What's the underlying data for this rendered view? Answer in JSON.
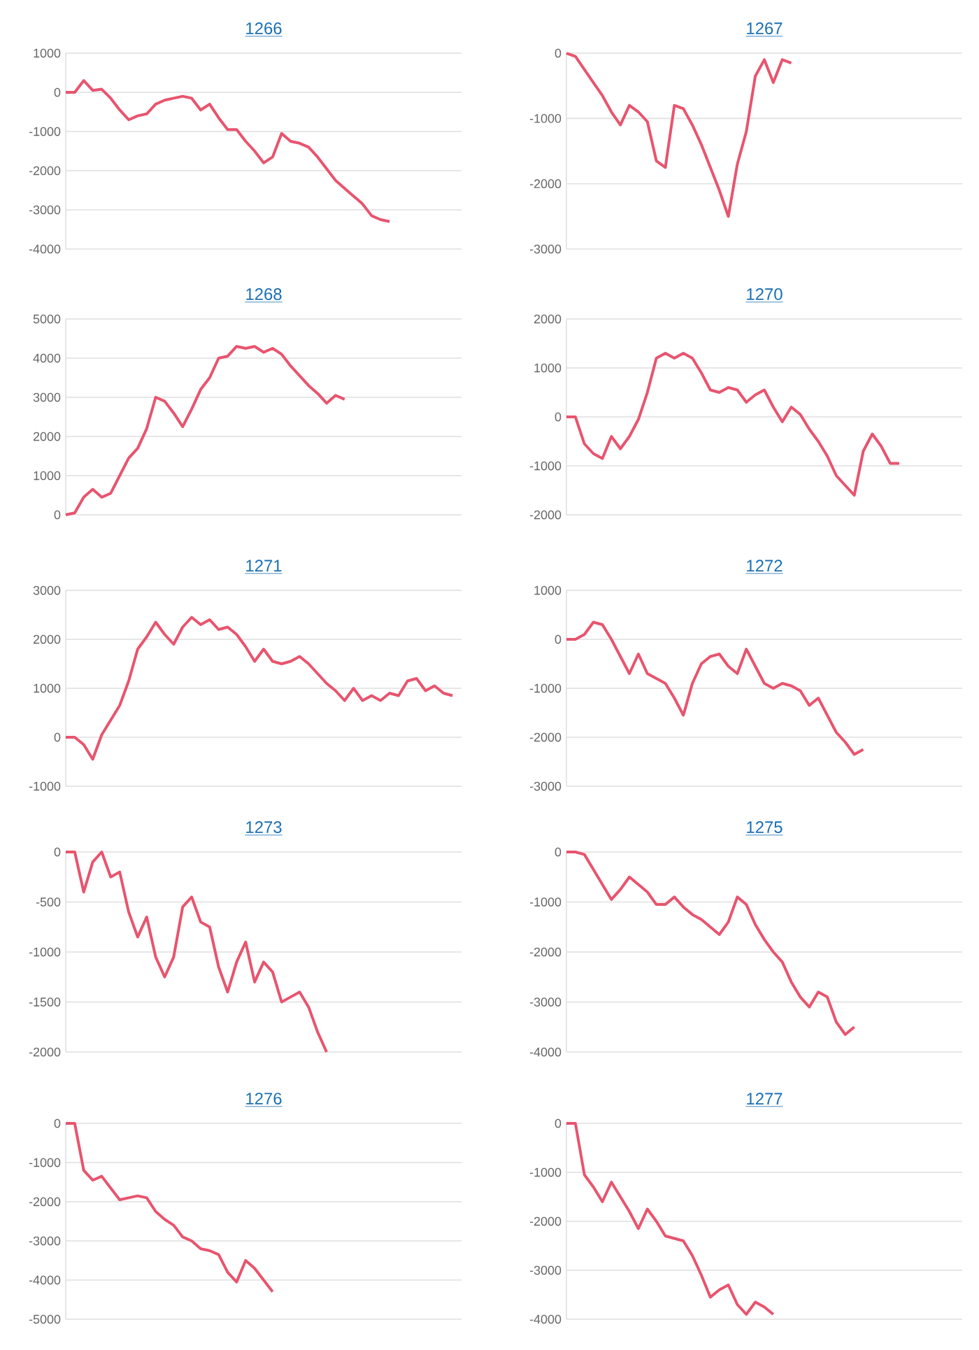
{
  "chart_data": [
    {
      "type": "line",
      "title": "1266",
      "grid": "y",
      "tick_labels": "y",
      "color": "#e8546e",
      "ylim": [
        -4000,
        1000
      ],
      "yticks": [
        -4000,
        -3000,
        -2000,
        -1000,
        0,
        1000
      ],
      "categories": [
        null,
        null,
        null,
        null,
        null,
        null,
        null,
        null,
        null,
        null,
        null,
        null,
        null,
        null,
        null,
        null,
        null,
        null,
        null,
        null,
        null,
        null,
        null,
        null,
        null,
        null,
        null,
        null,
        null,
        null,
        null,
        null,
        null,
        null,
        null,
        null,
        null,
        null,
        null,
        null,
        null,
        null,
        null,
        null,
        null
      ],
      "values": [
        0,
        0,
        300,
        50,
        80,
        -150,
        -450,
        -700,
        -600,
        -550,
        -300,
        -200,
        -150,
        -100,
        -150,
        -450,
        -300,
        -650,
        -950,
        -950,
        -1250,
        -1500,
        -1800,
        -1650,
        -1050,
        -1250,
        -1300,
        -1400,
        -1650,
        -1950,
        -2250,
        -2450,
        -2650,
        -2850,
        -3150,
        -3250,
        -3300,
        null,
        null,
        null,
        null,
        null,
        null,
        null,
        null
      ]
    },
    {
      "type": "line",
      "title": "1267",
      "grid": "y",
      "tick_labels": "y",
      "color": "#e8546e",
      "ylim": [
        -3000,
        0
      ],
      "yticks": [
        -3000,
        -2000,
        -1000,
        0
      ],
      "categories": [
        null,
        null,
        null,
        null,
        null,
        null,
        null,
        null,
        null,
        null,
        null,
        null,
        null,
        null,
        null,
        null,
        null,
        null,
        null,
        null,
        null,
        null,
        null,
        null,
        null,
        null,
        null,
        null,
        null,
        null,
        null,
        null,
        null,
        null,
        null,
        null,
        null,
        null,
        null,
        null,
        null,
        null,
        null,
        null,
        null
      ],
      "values": [
        0,
        -50,
        -250,
        -450,
        -650,
        -900,
        -1100,
        -800,
        -900,
        -1050,
        -1650,
        -1750,
        -800,
        -850,
        -1100,
        -1400,
        -1750,
        -2100,
        -2500,
        -1700,
        -1200,
        -350,
        -100,
        -450,
        -100,
        -150,
        null,
        null,
        null,
        null,
        null,
        null,
        null,
        null,
        null,
        null,
        null,
        null,
        null,
        null,
        null,
        null,
        null,
        null,
        null
      ]
    },
    {
      "type": "line",
      "title": "1268",
      "grid": "y",
      "tick_labels": "y",
      "color": "#e8546e",
      "ylim": [
        0,
        5000
      ],
      "yticks": [
        0,
        1000,
        2000,
        3000,
        4000,
        5000
      ],
      "categories": [
        null,
        null,
        null,
        null,
        null,
        null,
        null,
        null,
        null,
        null,
        null,
        null,
        null,
        null,
        null,
        null,
        null,
        null,
        null,
        null,
        null,
        null,
        null,
        null,
        null,
        null,
        null,
        null,
        null,
        null,
        null,
        null,
        null,
        null,
        null,
        null,
        null,
        null,
        null,
        null,
        null,
        null,
        null,
        null,
        null
      ],
      "values": [
        0,
        50,
        450,
        650,
        450,
        550,
        1000,
        1450,
        1700,
        2200,
        3000,
        2900,
        2600,
        2250,
        2700,
        3200,
        3500,
        4000,
        4050,
        4300,
        4250,
        4300,
        4150,
        4250,
        4100,
        3800,
        3550,
        3300,
        3100,
        2850,
        3050,
        2950,
        null,
        null,
        null,
        null,
        null,
        null,
        null,
        null,
        null,
        null,
        null,
        null,
        null
      ]
    },
    {
      "type": "line",
      "title": "1270",
      "grid": "y",
      "tick_labels": "y",
      "color": "#e8546e",
      "ylim": [
        -2000,
        2000
      ],
      "yticks": [
        -2000,
        -1000,
        0,
        1000,
        2000
      ],
      "categories": [
        null,
        null,
        null,
        null,
        null,
        null,
        null,
        null,
        null,
        null,
        null,
        null,
        null,
        null,
        null,
        null,
        null,
        null,
        null,
        null,
        null,
        null,
        null,
        null,
        null,
        null,
        null,
        null,
        null,
        null,
        null,
        null,
        null,
        null,
        null,
        null,
        null,
        null,
        null,
        null,
        null,
        null,
        null,
        null,
        null
      ],
      "values": [
        0,
        0,
        -550,
        -750,
        -850,
        -400,
        -650,
        -400,
        -50,
        500,
        1200,
        1300,
        1200,
        1300,
        1200,
        900,
        550,
        500,
        600,
        550,
        300,
        450,
        550,
        200,
        -100,
        200,
        50,
        -250,
        -500,
        -800,
        -1200,
        -1400,
        -1600,
        -700,
        -350,
        -600,
        -950,
        -950,
        null,
        null,
        null,
        null,
        null,
        null,
        null
      ]
    },
    {
      "type": "line",
      "title": "1271",
      "grid": "y",
      "tick_labels": "y",
      "color": "#e8546e",
      "ylim": [
        -1000,
        3000
      ],
      "yticks": [
        -1000,
        0,
        1000,
        2000,
        3000
      ],
      "categories": [
        null,
        null,
        null,
        null,
        null,
        null,
        null,
        null,
        null,
        null,
        null,
        null,
        null,
        null,
        null,
        null,
        null,
        null,
        null,
        null,
        null,
        null,
        null,
        null,
        null,
        null,
        null,
        null,
        null,
        null,
        null,
        null,
        null,
        null,
        null,
        null,
        null,
        null,
        null,
        null,
        null,
        null,
        null,
        null,
        null
      ],
      "values": [
        0,
        0,
        -150,
        -450,
        50,
        350,
        650,
        1150,
        1800,
        2050,
        2350,
        2100,
        1900,
        2250,
        2450,
        2300,
        2400,
        2200,
        2250,
        2100,
        1850,
        1550,
        1800,
        1550,
        1500,
        1550,
        1650,
        1500,
        1300,
        1100,
        950,
        750,
        1000,
        750,
        850,
        750,
        900,
        850,
        1150,
        1200,
        950,
        1050,
        900,
        850,
        null
      ]
    },
    {
      "type": "line",
      "title": "1272",
      "grid": "y",
      "tick_labels": "y",
      "color": "#e8546e",
      "ylim": [
        -3000,
        1000
      ],
      "yticks": [
        -3000,
        -2000,
        -1000,
        0,
        1000
      ],
      "categories": [
        null,
        null,
        null,
        null,
        null,
        null,
        null,
        null,
        null,
        null,
        null,
        null,
        null,
        null,
        null,
        null,
        null,
        null,
        null,
        null,
        null,
        null,
        null,
        null,
        null,
        null,
        null,
        null,
        null,
        null,
        null,
        null,
        null,
        null,
        null,
        null,
        null,
        null,
        null,
        null,
        null,
        null,
        null,
        null,
        null
      ],
      "values": [
        0,
        0,
        100,
        350,
        300,
        0,
        -350,
        -700,
        -300,
        -700,
        -800,
        -900,
        -1200,
        -1550,
        -900,
        -500,
        -350,
        -300,
        -550,
        -700,
        -200,
        -550,
        -900,
        -1000,
        -900,
        -950,
        -1050,
        -1350,
        -1200,
        -1550,
        -1900,
        -2100,
        -2350,
        -2250,
        null,
        null,
        null,
        null,
        null,
        null,
        null,
        null,
        null,
        null,
        null
      ]
    },
    {
      "type": "line",
      "title": "1273",
      "grid": "y",
      "tick_labels": "y",
      "color": "#e8546e",
      "ylim": [
        -2000,
        0
      ],
      "yticks": [
        -2000,
        -1500,
        -1000,
        -500,
        0
      ],
      "categories": [
        null,
        null,
        null,
        null,
        null,
        null,
        null,
        null,
        null,
        null,
        null,
        null,
        null,
        null,
        null,
        null,
        null,
        null,
        null,
        null,
        null,
        null,
        null,
        null,
        null,
        null,
        null,
        null,
        null,
        null,
        null,
        null,
        null,
        null,
        null,
        null,
        null,
        null,
        null,
        null,
        null,
        null,
        null,
        null,
        null
      ],
      "values": [
        0,
        0,
        -400,
        -100,
        0,
        -250,
        -200,
        -600,
        -850,
        -650,
        -1050,
        -1250,
        -1050,
        -550,
        -450,
        -700,
        -750,
        -1150,
        -1400,
        -1100,
        -900,
        -1300,
        -1100,
        -1200,
        -1500,
        -1450,
        -1400,
        -1550,
        -1800,
        -2000,
        null,
        null,
        null,
        null,
        null,
        null,
        null,
        null,
        null,
        null,
        null,
        null,
        null,
        null,
        null
      ]
    },
    {
      "type": "line",
      "title": "1275",
      "grid": "y",
      "tick_labels": "y",
      "color": "#e8546e",
      "ylim": [
        -4000,
        0
      ],
      "yticks": [
        -4000,
        -3000,
        -2000,
        -1000,
        0
      ],
      "categories": [
        null,
        null,
        null,
        null,
        null,
        null,
        null,
        null,
        null,
        null,
        null,
        null,
        null,
        null,
        null,
        null,
        null,
        null,
        null,
        null,
        null,
        null,
        null,
        null,
        null,
        null,
        null,
        null,
        null,
        null,
        null,
        null,
        null,
        null,
        null,
        null,
        null,
        null,
        null,
        null,
        null,
        null,
        null,
        null,
        null
      ],
      "values": [
        0,
        0,
        -50,
        -350,
        -650,
        -950,
        -750,
        -500,
        -650,
        -800,
        -1050,
        -1050,
        -900,
        -1100,
        -1250,
        -1350,
        -1500,
        -1650,
        -1400,
        -900,
        -1050,
        -1450,
        -1750,
        -2000,
        -2200,
        -2600,
        -2900,
        -3100,
        -2800,
        -2900,
        -3400,
        -3650,
        -3500,
        null,
        null,
        null,
        null,
        null,
        null,
        null,
        null,
        null,
        null,
        null,
        null
      ]
    },
    {
      "type": "line",
      "title": "1276",
      "grid": "y",
      "tick_labels": "y",
      "color": "#e8546e",
      "ylim": [
        -5000,
        0
      ],
      "yticks": [
        -5000,
        -4000,
        -3000,
        -2000,
        -1000,
        0
      ],
      "categories": [
        null,
        null,
        null,
        null,
        null,
        null,
        null,
        null,
        null,
        null,
        null,
        null,
        null,
        null,
        null,
        null,
        null,
        null,
        null,
        null,
        null,
        null,
        null,
        null,
        null,
        null,
        null,
        null,
        null,
        null,
        null,
        null,
        null,
        null,
        null,
        null,
        null,
        null,
        null,
        null,
        null,
        null,
        null,
        null,
        null
      ],
      "values": [
        0,
        0,
        -1200,
        -1450,
        -1350,
        -1650,
        -1950,
        -1900,
        -1850,
        -1900,
        -2250,
        -2450,
        -2600,
        -2900,
        -3000,
        -3200,
        -3250,
        -3350,
        -3800,
        -4050,
        -3500,
        -3700,
        -4000,
        -4300,
        null,
        null,
        null,
        null,
        null,
        null,
        null,
        null,
        null,
        null,
        null,
        null,
        null,
        null,
        null,
        null,
        null,
        null,
        null,
        null,
        null
      ]
    },
    {
      "type": "line",
      "title": "1277",
      "grid": "y",
      "tick_labels": "y",
      "color": "#e8546e",
      "ylim": [
        -4000,
        0
      ],
      "yticks": [
        -4000,
        -3000,
        -2000,
        -1000,
        0
      ],
      "categories": [
        null,
        null,
        null,
        null,
        null,
        null,
        null,
        null,
        null,
        null,
        null,
        null,
        null,
        null,
        null,
        null,
        null,
        null,
        null,
        null,
        null,
        null,
        null,
        null,
        null,
        null,
        null,
        null,
        null,
        null,
        null,
        null,
        null,
        null,
        null,
        null,
        null,
        null,
        null,
        null,
        null,
        null,
        null,
        null,
        null
      ],
      "values": [
        0,
        0,
        -1050,
        -1300,
        -1600,
        -1200,
        -1500,
        -1800,
        -2150,
        -1750,
        -2000,
        -2300,
        -2350,
        -2400,
        -2700,
        -3100,
        -3550,
        -3400,
        -3300,
        -3700,
        -3900,
        -3650,
        -3750,
        -3900,
        null,
        null,
        null,
        null,
        null,
        null,
        null,
        null,
        null,
        null,
        null,
        null,
        null,
        null,
        null,
        null,
        null,
        null,
        null,
        null,
        null
      ]
    }
  ]
}
